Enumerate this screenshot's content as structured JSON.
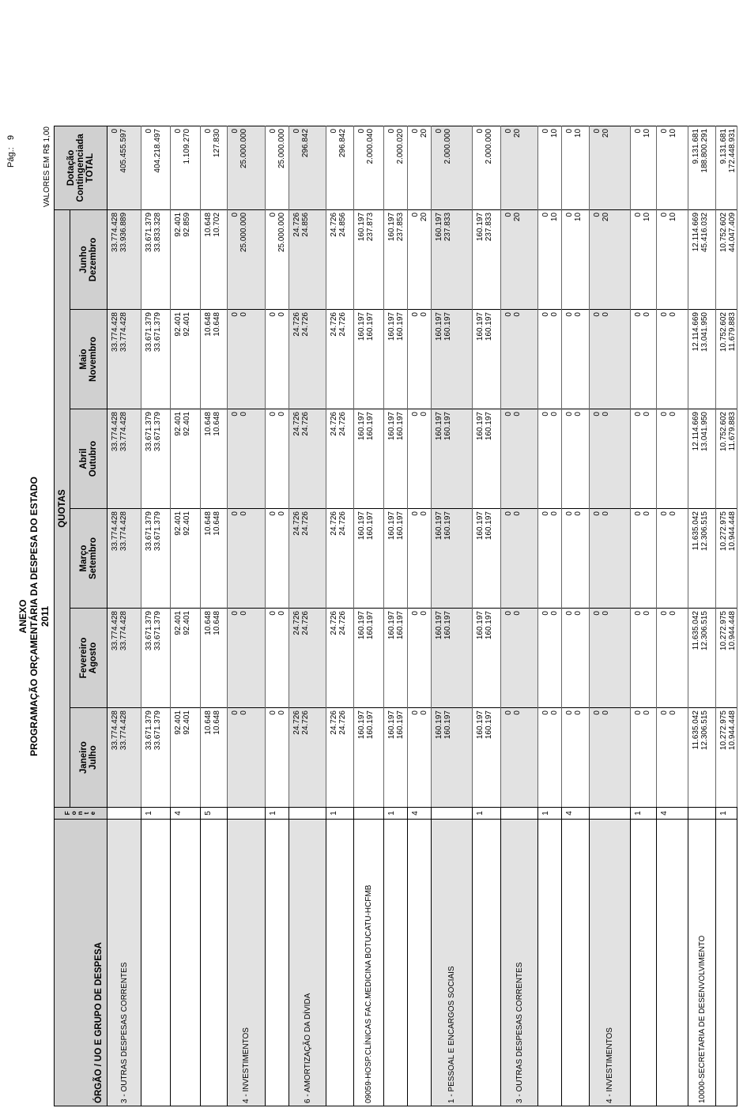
{
  "header": {
    "anexo": "ANEXO",
    "title": "PROGRAMAÇÃO ORÇAMENTÁRIA DA DESPESA DO ESTADO",
    "year": "2011",
    "page_label": "Pág.:",
    "page": "9",
    "units": "VALORES EM R$ 1,00"
  },
  "table": {
    "org_header": "ÓRGÃO / UO  E GRUPO DE DESPESA",
    "fonte_header": "Fonte",
    "quotas_header": "QUOTAS",
    "months": [
      [
        "Janeiro",
        "Julho"
      ],
      [
        "Fevereiro",
        "Agosto"
      ],
      [
        "Março",
        "Setembro"
      ],
      [
        "Abril",
        "Outubro"
      ],
      [
        "Maio",
        "Novembro"
      ],
      [
        "Junho",
        "Dezembro"
      ]
    ],
    "total_header": [
      "Dotação",
      "Contingenciada",
      "TOTAL"
    ],
    "rows": [
      {
        "label": "3 - OUTRAS DESPESAS CORRENTES",
        "values": [
          [
            "33.774.428",
            "33.774.428"
          ],
          [
            "33.774.428",
            "33.774.428"
          ],
          [
            "33.774.428",
            "33.774.428"
          ],
          [
            "33.774.428",
            "33.774.428"
          ],
          [
            "33.774.428",
            "33.774.428"
          ],
          [
            "33.774.428",
            "33.936.889"
          ],
          [
            "0",
            "405.455.597"
          ]
        ]
      },
      {
        "fonte": "1",
        "values": [
          [
            "33.671.379",
            "33.671.379"
          ],
          [
            "33.671.379",
            "33.671.379"
          ],
          [
            "33.671.379",
            "33.671.379"
          ],
          [
            "33.671.379",
            "33.671.379"
          ],
          [
            "33.671.379",
            "33.671.379"
          ],
          [
            "33.671.379",
            "33.833.328"
          ],
          [
            "0",
            "404.218.497"
          ]
        ]
      },
      {
        "fonte": "4",
        "values": [
          [
            "92.401",
            "92.401"
          ],
          [
            "92.401",
            "92.401"
          ],
          [
            "92.401",
            "92.401"
          ],
          [
            "92.401",
            "92.401"
          ],
          [
            "92.401",
            "92.401"
          ],
          [
            "92.401",
            "92.859"
          ],
          [
            "0",
            "1.109.270"
          ]
        ]
      },
      {
        "fonte": "5",
        "values": [
          [
            "10.648",
            "10.648"
          ],
          [
            "10.648",
            "10.648"
          ],
          [
            "10.648",
            "10.648"
          ],
          [
            "10.648",
            "10.648"
          ],
          [
            "10.648",
            "10.648"
          ],
          [
            "10.648",
            "10.702"
          ],
          [
            "0",
            "127.830"
          ]
        ]
      },
      {
        "label": "4 - INVESTIMENTOS",
        "values": [
          [
            "0",
            "0"
          ],
          [
            "0",
            "0"
          ],
          [
            "0",
            "0"
          ],
          [
            "0",
            "0"
          ],
          [
            "0",
            "0"
          ],
          [
            "0",
            "25.000.000"
          ],
          [
            "0",
            "25.000.000"
          ]
        ]
      },
      {
        "fonte": "1",
        "values": [
          [
            "0",
            "0"
          ],
          [
            "0",
            "0"
          ],
          [
            "0",
            "0"
          ],
          [
            "0",
            "0"
          ],
          [
            "0",
            "0"
          ],
          [
            "0",
            "25.000.000"
          ],
          [
            "0",
            "25.000.000"
          ]
        ]
      },
      {
        "label": "6 - AMORTIZAÇÃO DA DÍVIDA",
        "values": [
          [
            "24.726",
            "24.726"
          ],
          [
            "24.726",
            "24.726"
          ],
          [
            "24.726",
            "24.726"
          ],
          [
            "24.726",
            "24.726"
          ],
          [
            "24.726",
            "24.726"
          ],
          [
            "24.726",
            "24.856"
          ],
          [
            "0",
            "296.842"
          ]
        ]
      },
      {
        "fonte": "1",
        "values": [
          [
            "24.726",
            "24.726"
          ],
          [
            "24.726",
            "24.726"
          ],
          [
            "24.726",
            "24.726"
          ],
          [
            "24.726",
            "24.726"
          ],
          [
            "24.726",
            "24.726"
          ],
          [
            "24.726",
            "24.856"
          ],
          [
            "0",
            "296.842"
          ]
        ]
      },
      {
        "label": "09059-HOSP.CLÍNICAS FAC.MEDICINA BOTUCATU-HCFMB",
        "values": [
          [
            "160.197",
            "160.197"
          ],
          [
            "160.197",
            "160.197"
          ],
          [
            "160.197",
            "160.197"
          ],
          [
            "160.197",
            "160.197"
          ],
          [
            "160.197",
            "160.197"
          ],
          [
            "160.197",
            "237.873"
          ],
          [
            "0",
            "2.000.040"
          ]
        ]
      },
      {
        "fonte": "1",
        "values": [
          [
            "160.197",
            "160.197"
          ],
          [
            "160.197",
            "160.197"
          ],
          [
            "160.197",
            "160.197"
          ],
          [
            "160.197",
            "160.197"
          ],
          [
            "160.197",
            "160.197"
          ],
          [
            "160.197",
            "237.853"
          ],
          [
            "0",
            "2.000.020"
          ]
        ]
      },
      {
        "fonte": "4",
        "values": [
          [
            "0",
            "0"
          ],
          [
            "0",
            "0"
          ],
          [
            "0",
            "0"
          ],
          [
            "0",
            "0"
          ],
          [
            "0",
            "0"
          ],
          [
            "0",
            "20"
          ],
          [
            "0",
            "20"
          ]
        ]
      },
      {
        "label": "1 - PESSOAL E ENCARGOS SOCIAIS",
        "values": [
          [
            "160.197",
            "160.197"
          ],
          [
            "160.197",
            "160.197"
          ],
          [
            "160.197",
            "160.197"
          ],
          [
            "160.197",
            "160.197"
          ],
          [
            "160.197",
            "160.197"
          ],
          [
            "160.197",
            "237.833"
          ],
          [
            "0",
            "2.000.000"
          ]
        ]
      },
      {
        "fonte": "1",
        "values": [
          [
            "160.197",
            "160.197"
          ],
          [
            "160.197",
            "160.197"
          ],
          [
            "160.197",
            "160.197"
          ],
          [
            "160.197",
            "160.197"
          ],
          [
            "160.197",
            "160.197"
          ],
          [
            "160.197",
            "237.833"
          ],
          [
            "0",
            "2.000.000"
          ]
        ]
      },
      {
        "label": "3 - OUTRAS DESPESAS CORRENTES",
        "values": [
          [
            "0",
            "0"
          ],
          [
            "0",
            "0"
          ],
          [
            "0",
            "0"
          ],
          [
            "0",
            "0"
          ],
          [
            "0",
            "0"
          ],
          [
            "0",
            "20"
          ],
          [
            "0",
            "20"
          ]
        ]
      },
      {
        "fonte": "1",
        "values": [
          [
            "0",
            "0"
          ],
          [
            "0",
            "0"
          ],
          [
            "0",
            "0"
          ],
          [
            "0",
            "0"
          ],
          [
            "0",
            "0"
          ],
          [
            "0",
            "10"
          ],
          [
            "0",
            "10"
          ]
        ]
      },
      {
        "fonte": "4",
        "values": [
          [
            "0",
            "0"
          ],
          [
            "0",
            "0"
          ],
          [
            "0",
            "0"
          ],
          [
            "0",
            "0"
          ],
          [
            "0",
            "0"
          ],
          [
            "0",
            "10"
          ],
          [
            "0",
            "10"
          ]
        ]
      },
      {
        "label": "4 - INVESTIMENTOS",
        "values": [
          [
            "0",
            "0"
          ],
          [
            "0",
            "0"
          ],
          [
            "0",
            "0"
          ],
          [
            "0",
            "0"
          ],
          [
            "0",
            "0"
          ],
          [
            "0",
            "20"
          ],
          [
            "0",
            "20"
          ]
        ]
      },
      {
        "fonte": "1",
        "values": [
          [
            "0",
            "0"
          ],
          [
            "0",
            "0"
          ],
          [
            "0",
            "0"
          ],
          [
            "0",
            "0"
          ],
          [
            "0",
            "0"
          ],
          [
            "0",
            "10"
          ],
          [
            "0",
            "10"
          ]
        ]
      },
      {
        "fonte": "4",
        "values": [
          [
            "0",
            "0"
          ],
          [
            "0",
            "0"
          ],
          [
            "0",
            "0"
          ],
          [
            "0",
            "0"
          ],
          [
            "0",
            "0"
          ],
          [
            "0",
            "10"
          ],
          [
            "0",
            "10"
          ]
        ]
      },
      {
        "label": "10000-SECRETARIA DE DESENVOLVIMENTO",
        "values": [
          [
            "11.635.042",
            "12.306.515"
          ],
          [
            "11.635.042",
            "12.306.515"
          ],
          [
            "11.635.042",
            "12.306.515"
          ],
          [
            "12.114.669",
            "13.041.950"
          ],
          [
            "12.114.669",
            "13.041.950"
          ],
          [
            "12.114.669",
            "45.416.032"
          ],
          [
            "9.131.681",
            "188.800.291"
          ]
        ]
      },
      {
        "fonte": "1",
        "values": [
          [
            "10.272.975",
            "10.944.448"
          ],
          [
            "10.272.975",
            "10.944.448"
          ],
          [
            "10.272.975",
            "10.944.448"
          ],
          [
            "10.752.602",
            "11.679.883"
          ],
          [
            "10.752.602",
            "11.679.883"
          ],
          [
            "10.752.602",
            "44.047.409"
          ],
          [
            "9.131.681",
            "172.448.931"
          ]
        ]
      }
    ]
  }
}
